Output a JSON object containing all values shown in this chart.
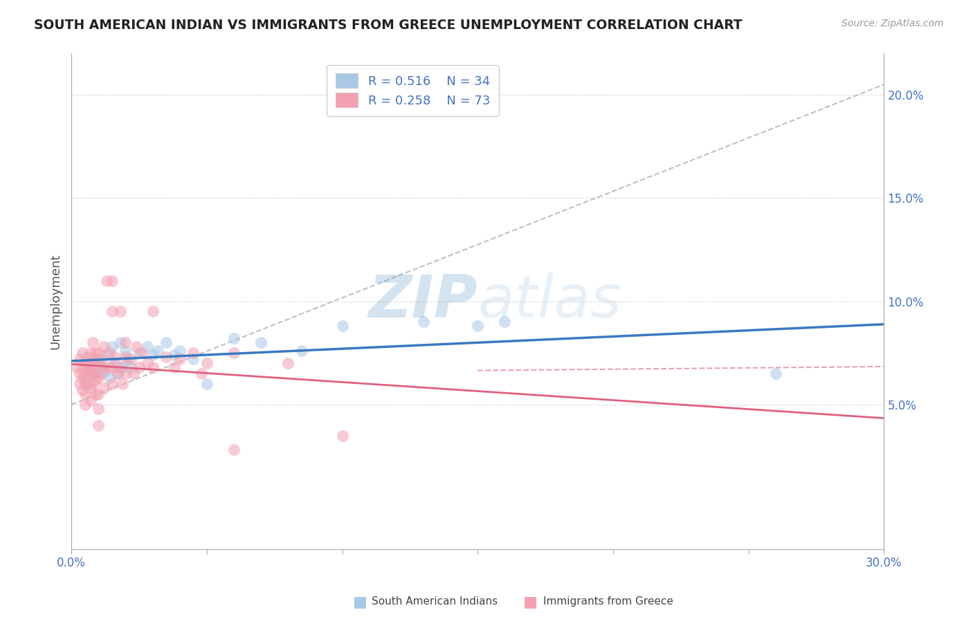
{
  "title": "SOUTH AMERICAN INDIAN VS IMMIGRANTS FROM GREECE UNEMPLOYMENT CORRELATION CHART",
  "source": "Source: ZipAtlas.com",
  "ylabel": "Unemployment",
  "xlim": [
    0.0,
    0.3
  ],
  "ylim": [
    -0.02,
    0.22
  ],
  "xticks": [
    0.0,
    0.05,
    0.1,
    0.15,
    0.2,
    0.25,
    0.3
  ],
  "xticklabels": [
    "0.0%",
    "",
    "",
    "",
    "",
    "",
    "30.0%"
  ],
  "yticks": [
    0.05,
    0.1,
    0.15,
    0.2
  ],
  "yticklabels": [
    "5.0%",
    "10.0%",
    "15.0%",
    "20.0%"
  ],
  "legend_R1": "R = 0.516",
  "legend_N1": "N = 34",
  "legend_R2": "R = 0.258",
  "legend_N2": "N = 73",
  "blue_color": "#a8c8e8",
  "pink_color": "#f4a0b0",
  "blue_line_color": "#3a7abf",
  "pink_line_color": "#e06080",
  "pink_dash_color": "#e8a0b0",
  "gray_dash_color": "#c0c0c0",
  "watermark": "ZIPatlas",
  "blue_points": [
    [
      0.005,
      0.063
    ],
    [
      0.007,
      0.068
    ],
    [
      0.008,
      0.07
    ],
    [
      0.009,
      0.065
    ],
    [
      0.01,
      0.072
    ],
    [
      0.011,
      0.068
    ],
    [
      0.012,
      0.066
    ],
    [
      0.013,
      0.074
    ],
    [
      0.014,
      0.063
    ],
    [
      0.015,
      0.078
    ],
    [
      0.016,
      0.07
    ],
    [
      0.017,
      0.065
    ],
    [
      0.018,
      0.08
    ],
    [
      0.019,
      0.068
    ],
    [
      0.02,
      0.076
    ],
    [
      0.021,
      0.072
    ],
    [
      0.022,
      0.068
    ],
    [
      0.025,
      0.075
    ],
    [
      0.028,
      0.078
    ],
    [
      0.03,
      0.074
    ],
    [
      0.032,
      0.076
    ],
    [
      0.035,
      0.08
    ],
    [
      0.038,
      0.074
    ],
    [
      0.04,
      0.076
    ],
    [
      0.045,
      0.072
    ],
    [
      0.05,
      0.06
    ],
    [
      0.06,
      0.082
    ],
    [
      0.07,
      0.08
    ],
    [
      0.085,
      0.076
    ],
    [
      0.1,
      0.088
    ],
    [
      0.13,
      0.09
    ],
    [
      0.15,
      0.088
    ],
    [
      0.16,
      0.09
    ],
    [
      0.26,
      0.065
    ]
  ],
  "pink_points": [
    [
      0.002,
      0.068
    ],
    [
      0.003,
      0.072
    ],
    [
      0.003,
      0.065
    ],
    [
      0.003,
      0.06
    ],
    [
      0.004,
      0.075
    ],
    [
      0.004,
      0.068
    ],
    [
      0.004,
      0.063
    ],
    [
      0.004,
      0.057
    ],
    [
      0.005,
      0.07
    ],
    [
      0.005,
      0.065
    ],
    [
      0.005,
      0.06
    ],
    [
      0.005,
      0.055
    ],
    [
      0.005,
      0.05
    ],
    [
      0.006,
      0.073
    ],
    [
      0.006,
      0.067
    ],
    [
      0.006,
      0.06
    ],
    [
      0.007,
      0.075
    ],
    [
      0.007,
      0.07
    ],
    [
      0.007,
      0.065
    ],
    [
      0.007,
      0.058
    ],
    [
      0.007,
      0.052
    ],
    [
      0.008,
      0.08
    ],
    [
      0.008,
      0.072
    ],
    [
      0.008,
      0.065
    ],
    [
      0.008,
      0.06
    ],
    [
      0.009,
      0.075
    ],
    [
      0.009,
      0.068
    ],
    [
      0.009,
      0.062
    ],
    [
      0.009,
      0.055
    ],
    [
      0.01,
      0.075
    ],
    [
      0.01,
      0.07
    ],
    [
      0.01,
      0.063
    ],
    [
      0.01,
      0.055
    ],
    [
      0.01,
      0.048
    ],
    [
      0.01,
      0.04
    ],
    [
      0.011,
      0.072
    ],
    [
      0.011,
      0.065
    ],
    [
      0.012,
      0.078
    ],
    [
      0.012,
      0.068
    ],
    [
      0.012,
      0.058
    ],
    [
      0.013,
      0.11
    ],
    [
      0.014,
      0.075
    ],
    [
      0.014,
      0.068
    ],
    [
      0.015,
      0.095
    ],
    [
      0.015,
      0.11
    ],
    [
      0.015,
      0.068
    ],
    [
      0.015,
      0.06
    ],
    [
      0.016,
      0.073
    ],
    [
      0.017,
      0.065
    ],
    [
      0.018,
      0.095
    ],
    [
      0.018,
      0.068
    ],
    [
      0.019,
      0.06
    ],
    [
      0.02,
      0.08
    ],
    [
      0.02,
      0.073
    ],
    [
      0.02,
      0.065
    ],
    [
      0.022,
      0.072
    ],
    [
      0.023,
      0.065
    ],
    [
      0.024,
      0.078
    ],
    [
      0.025,
      0.068
    ],
    [
      0.026,
      0.075
    ],
    [
      0.028,
      0.07
    ],
    [
      0.03,
      0.095
    ],
    [
      0.03,
      0.068
    ],
    [
      0.035,
      0.073
    ],
    [
      0.038,
      0.068
    ],
    [
      0.04,
      0.072
    ],
    [
      0.045,
      0.075
    ],
    [
      0.048,
      0.065
    ],
    [
      0.05,
      0.07
    ],
    [
      0.06,
      0.075
    ],
    [
      0.08,
      0.07
    ],
    [
      0.1,
      0.035
    ],
    [
      0.06,
      0.028
    ]
  ]
}
